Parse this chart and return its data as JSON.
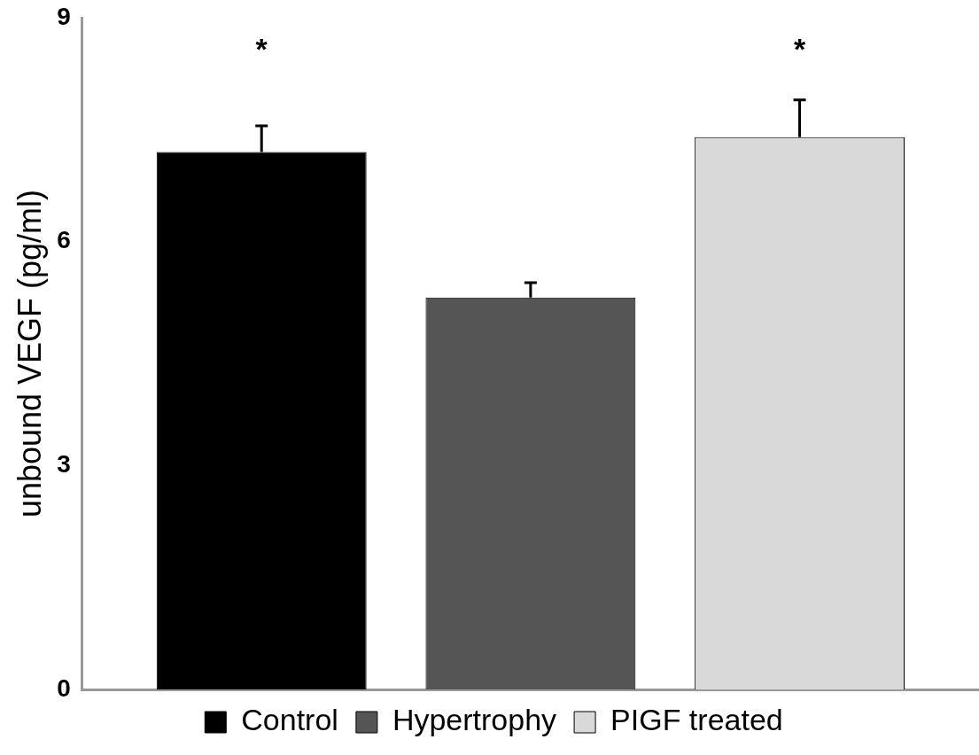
{
  "chart_data": {
    "type": "bar",
    "ylabel": "unbound VEGF (pg/ml)",
    "categories": [
      null
    ],
    "series": [
      {
        "name": "Control",
        "color": "#000000",
        "values": [
          7.2
        ],
        "errors": [
          0.35
        ]
      },
      {
        "name": "Hypertrophy",
        "color": "#555555",
        "values": [
          5.25
        ],
        "errors": [
          0.2
        ]
      },
      {
        "name": "PIGF treated",
        "color": "#d9d9d9",
        "values": [
          7.4
        ],
        "errors": [
          0.5
        ]
      }
    ],
    "ylim": [
      0,
      9
    ],
    "yticks": [
      0,
      3,
      6,
      9
    ],
    "grid": false,
    "legend": "bottom",
    "tick_labels": "y",
    "annotations": [
      "*",
      "*"
    ]
  }
}
